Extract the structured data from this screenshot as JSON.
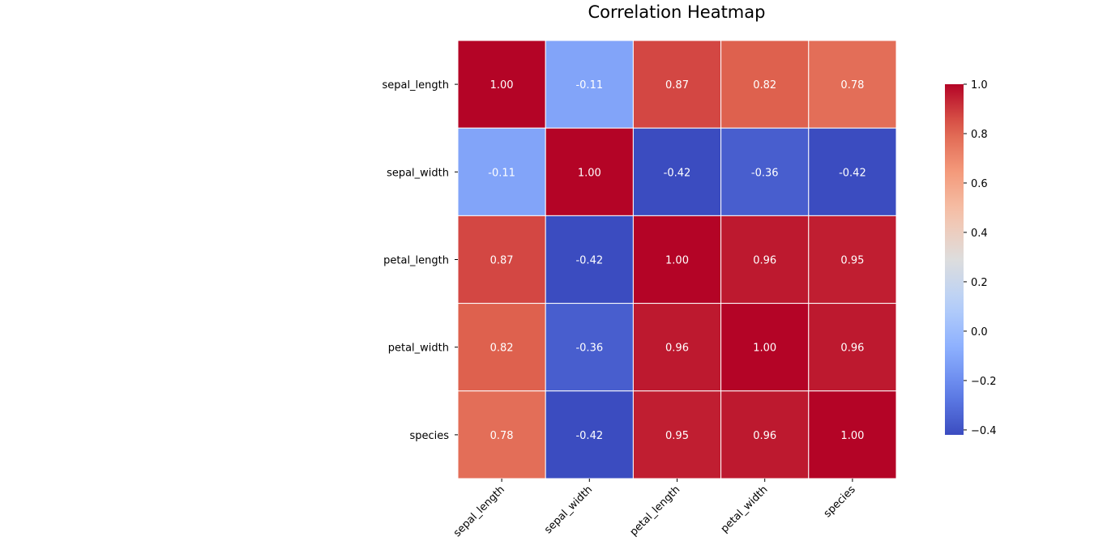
{
  "chart_data": {
    "type": "heatmap",
    "title": "Correlation Heatmap",
    "x_categories": [
      "sepal_length",
      "sepal_width",
      "petal_length",
      "petal_width",
      "species"
    ],
    "y_categories": [
      "sepal_length",
      "sepal_width",
      "petal_length",
      "petal_width",
      "species"
    ],
    "values": [
      [
        1.0,
        -0.11,
        0.87,
        0.82,
        0.78
      ],
      [
        -0.11,
        1.0,
        -0.42,
        -0.36,
        -0.42
      ],
      [
        0.87,
        -0.42,
        1.0,
        0.96,
        0.95
      ],
      [
        0.82,
        -0.36,
        0.96,
        1.0,
        0.96
      ],
      [
        0.78,
        -0.42,
        0.95,
        0.96,
        1.0
      ]
    ],
    "cell_labels": [
      [
        "1.00",
        "-0.11",
        "0.87",
        "0.82",
        "0.78"
      ],
      [
        "-0.11",
        "1.00",
        "-0.42",
        "-0.36",
        "-0.42"
      ],
      [
        "0.87",
        "-0.42",
        "1.00",
        "0.96",
        "0.95"
      ],
      [
        "0.82",
        "-0.36",
        "0.96",
        "1.00",
        "0.96"
      ],
      [
        "0.78",
        "-0.42",
        "0.95",
        "0.96",
        "1.00"
      ]
    ],
    "colormap": "coolwarm",
    "value_range": [
      -0.42,
      1.0
    ],
    "colorbar_ticks": [
      1.0,
      0.8,
      0.6,
      0.4,
      0.2,
      0.0,
      -0.2,
      -0.4
    ],
    "colorbar_tick_labels": [
      "1.0",
      "0.8",
      "0.6",
      "0.4",
      "0.2",
      "0.0",
      "−0.2",
      "−0.4"
    ],
    "colorbar_position": "right",
    "cell_border_color": "#ffffff",
    "x_tick_rotation_deg": 45,
    "annotation_color": "#ffffff"
  }
}
